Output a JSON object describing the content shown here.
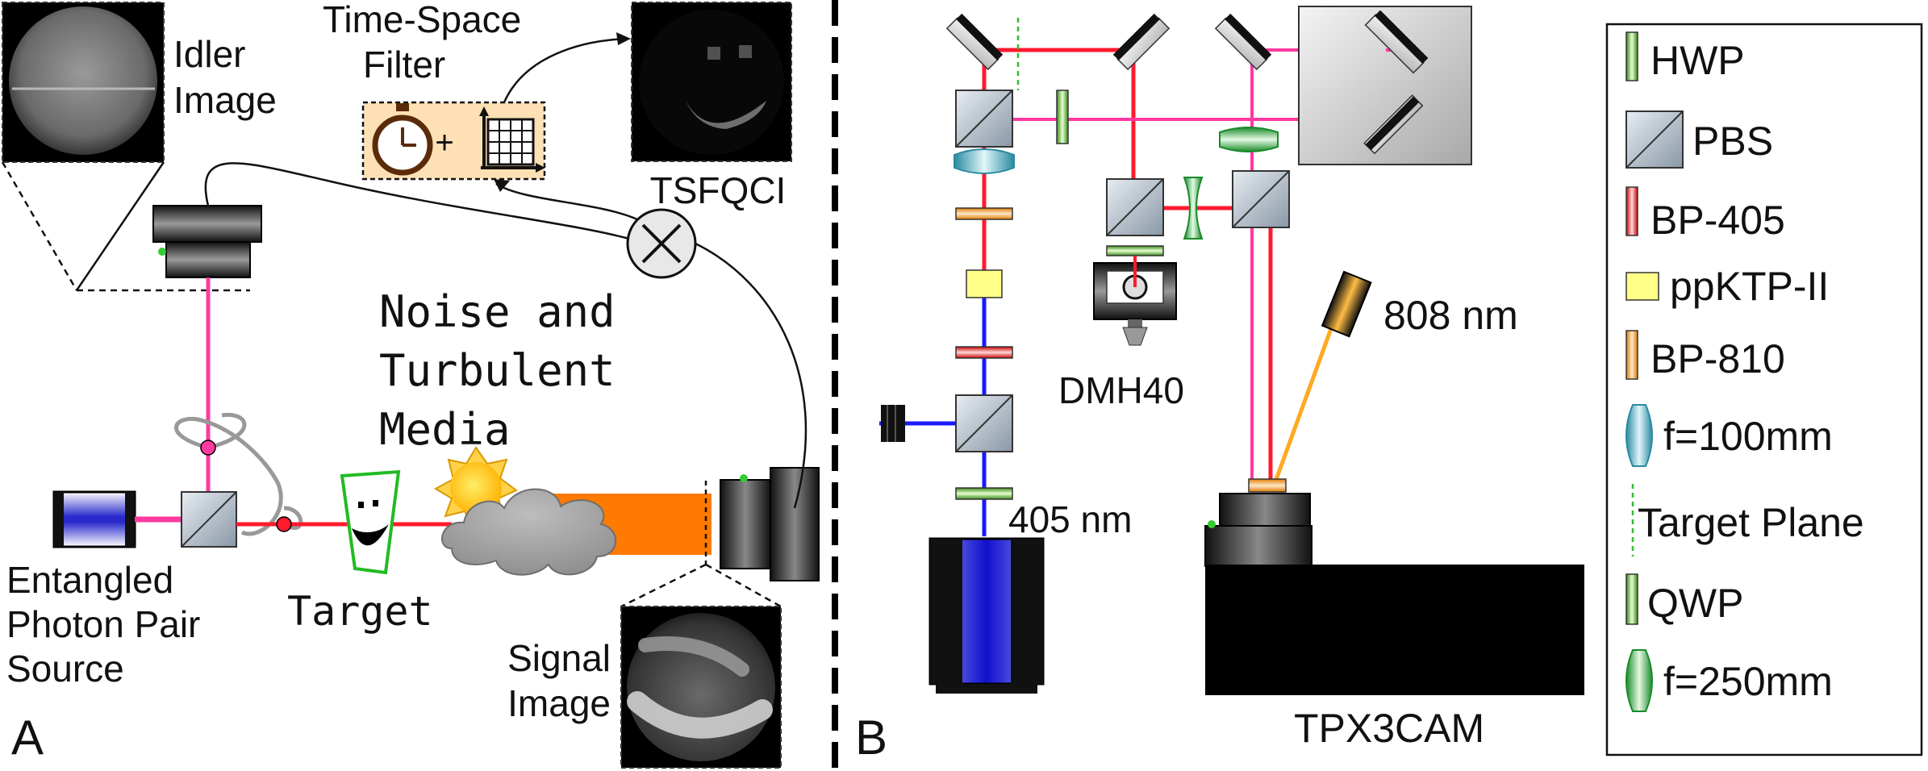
{
  "panel_a": {
    "letter": "A",
    "idler_image": [
      "Idler",
      "Image"
    ],
    "filter_title": [
      "Time-Space",
      "Filter"
    ],
    "filter_plus": "+",
    "tsfqci": "TSFQCI",
    "noise": [
      "Noise and",
      "Turbulent",
      "Media"
    ],
    "source": [
      "Entangled",
      "Photon Pair",
      "Source"
    ],
    "target": "Target",
    "signal_image": [
      "Signal",
      "Image"
    ]
  },
  "panel_b": {
    "letter": "B",
    "dmh40": "DMH40",
    "wl_808": "808 nm",
    "wl_405": "405 nm",
    "camera": "TPX3CAM"
  },
  "legend": {
    "items": [
      "HWP",
      "PBS",
      "BP-405",
      "ppKTP-II",
      "BP-810",
      "f=100mm",
      "Target Plane",
      "QWP",
      "f=250mm"
    ]
  },
  "colors": {
    "pump": "#ff1a2e",
    "photon_pair": "#ff3aa0",
    "blue_beam": "#1a1aff",
    "signal_beam": "#ff7a00",
    "laser_808": "#ffaa22",
    "filter_bg": "#fde0b3",
    "target_green": "#22bb22"
  }
}
